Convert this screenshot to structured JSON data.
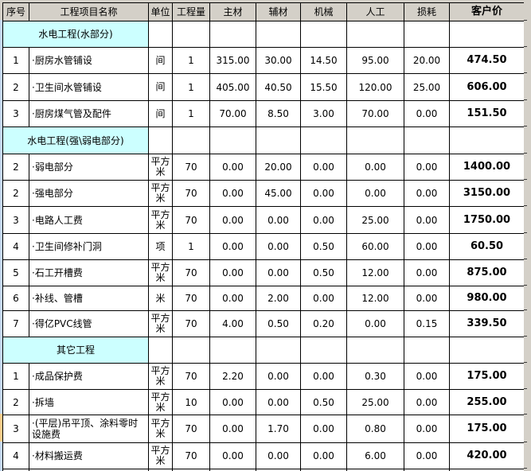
{
  "table": {
    "columns": [
      "序号",
      "工程项目名称",
      "单位",
      "工程量",
      "主材",
      "辅材",
      "机械",
      "人工",
      "损耗",
      "客户价"
    ],
    "sections": [
      {
        "title": "水电工程(水部分)",
        "rows": [
          {
            "no": "1",
            "name": "·厨房水管铺设",
            "unit": "间",
            "qty": "1",
            "main": "315.00",
            "aux": "30.00",
            "mach": "14.50",
            "labor": "95.00",
            "loss": "20.00",
            "price": "474.50"
          },
          {
            "no": "2",
            "name": "·卫生间水管铺设",
            "unit": "间",
            "qty": "1",
            "main": "405.00",
            "aux": "40.50",
            "mach": "15.50",
            "labor": "120.00",
            "loss": "25.00",
            "price": "606.00"
          },
          {
            "no": "3",
            "name": "·厨房煤气管及配件",
            "unit": "间",
            "qty": "1",
            "main": "70.00",
            "aux": "8.50",
            "mach": "3.00",
            "labor": "70.00",
            "loss": "0.00",
            "price": "151.50"
          }
        ]
      },
      {
        "title": "水电工程(强\\弱电部分)",
        "rows": [
          {
            "no": "2",
            "name": "·弱电部分",
            "unit": "平方米",
            "qty": "70",
            "main": "0.00",
            "aux": "20.00",
            "mach": "0.00",
            "labor": "0.00",
            "loss": "0.00",
            "price": "1400.00"
          },
          {
            "no": "2",
            "name": "·强电部分",
            "unit": "平方米",
            "qty": "70",
            "main": "0.00",
            "aux": "45.00",
            "mach": "0.00",
            "labor": "0.00",
            "loss": "0.00",
            "price": "3150.00"
          },
          {
            "no": "3",
            "name": "·电路人工费",
            "unit": "平方米",
            "qty": "70",
            "main": "0.00",
            "aux": "0.00",
            "mach": "0.00",
            "labor": "25.00",
            "loss": "0.00",
            "price": "1750.00"
          },
          {
            "no": "4",
            "name": "·卫生间修补门洞",
            "unit": "项",
            "qty": "1",
            "main": "0.00",
            "aux": "0.00",
            "mach": "0.50",
            "labor": "60.00",
            "loss": "0.00",
            "price": "60.50"
          },
          {
            "no": "5",
            "name": "·石工开槽费",
            "unit": "平方米",
            "qty": "70",
            "main": "0.00",
            "aux": "0.00",
            "mach": "0.50",
            "labor": "12.00",
            "loss": "0.00",
            "price": "875.00"
          },
          {
            "no": "6",
            "name": "·补线、管槽",
            "unit": "米",
            "qty": "70",
            "main": "0.00",
            "aux": "2.00",
            "mach": "0.00",
            "labor": "12.00",
            "loss": "0.00",
            "price": "980.00"
          },
          {
            "no": "7",
            "name": "·得亿PVC线管",
            "unit": "平方米",
            "qty": "70",
            "main": "4.00",
            "aux": "0.50",
            "mach": "0.20",
            "labor": "0.00",
            "loss": "0.15",
            "price": "339.50"
          }
        ]
      },
      {
        "title": "其它工程",
        "rows": [
          {
            "no": "1",
            "name": "·成品保护费",
            "unit": "平方米",
            "qty": "70",
            "main": "2.20",
            "aux": "0.00",
            "mach": "0.00",
            "labor": "0.30",
            "loss": "0.00",
            "price": "175.00"
          },
          {
            "no": "2",
            "name": "·拆墙",
            "unit": "平方米",
            "qty": "10",
            "main": "0.00",
            "aux": "0.00",
            "mach": "0.50",
            "labor": "25.00",
            "loss": "0.00",
            "price": "255.00"
          },
          {
            "no": "3",
            "name": "·(平层)吊平顶、涂料零时设施费",
            "unit": "平方米",
            "qty": "70",
            "main": "0.00",
            "aux": "1.70",
            "mach": "0.00",
            "labor": "0.80",
            "loss": "0.00",
            "price": "175.00"
          },
          {
            "no": "4",
            "name": "·材料搬运费",
            "unit": "平方米",
            "qty": "70",
            "main": "0.00",
            "aux": "0.00",
            "mach": "0.00",
            "labor": "6.00",
            "loss": "0.00",
            "price": "420.00"
          }
        ]
      }
    ]
  },
  "colors": {
    "header_bg": "#d4d0c8",
    "section_bg": "#ccffff",
    "grid_border": "#000000",
    "outside_bg": "#d4d0c8",
    "left_strip": "#c6d9f1",
    "left_strip_highlight": "#fbce8d"
  }
}
